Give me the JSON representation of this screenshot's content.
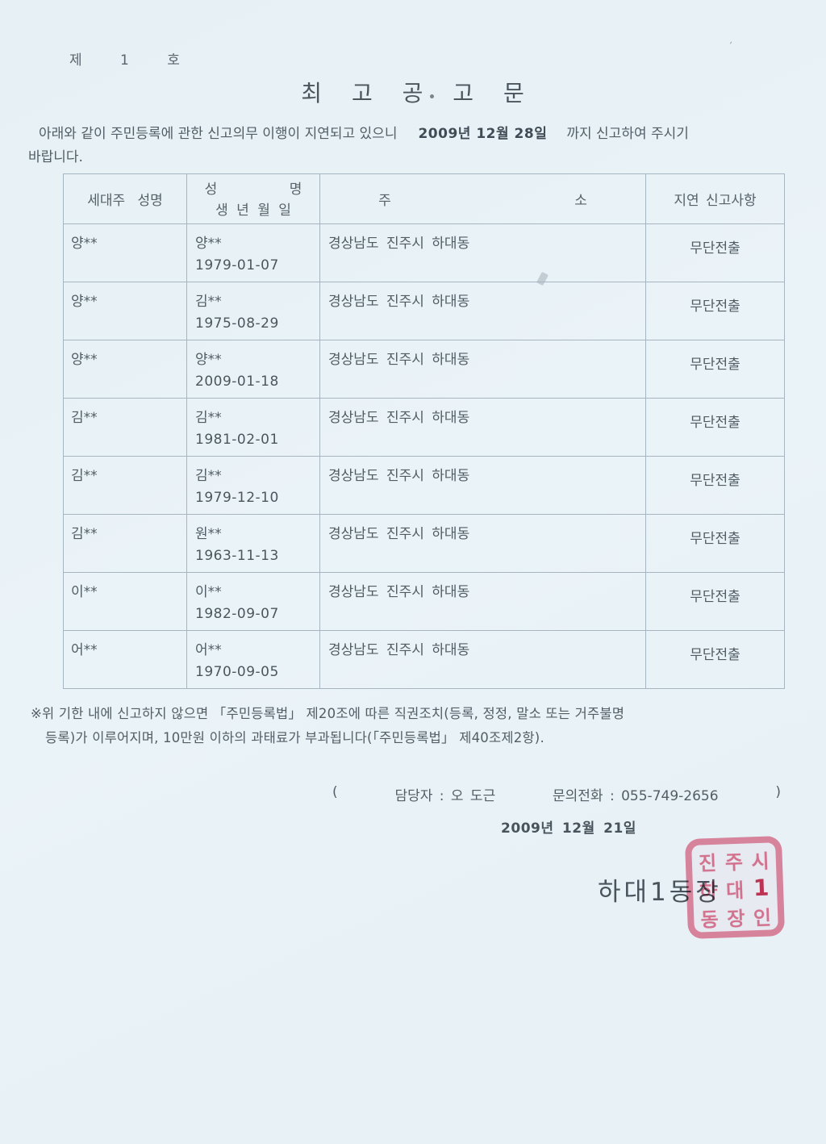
{
  "colors": {
    "paper": "#eaf3f7",
    "ink": "#4e5963",
    "table_border": "#a6b5bf",
    "stamp_red": "#e25f7d"
  },
  "page": {
    "doc_number": "제 1 호",
    "title": "최 고 공 고 문"
  },
  "intro": {
    "line1_prefix": "아래와 같이 주민등록에 관한 신고의무 이행이 지연되고 있으니",
    "deadline": "2009년 12월 28일",
    "line1_suffix": "까지 신고하여 주시기",
    "line2": "바랍니다."
  },
  "table": {
    "headers": {
      "householder": "세대주 성명",
      "name_top": "성 명",
      "dob": "생 년 월 일",
      "address": "주 소",
      "delay": "지연 신고사항"
    },
    "rows": [
      {
        "householder": "양**",
        "name": "양**",
        "dob": "1979-01-07",
        "address": "경상남도 진주시 하대동",
        "status": "무단전출"
      },
      {
        "householder": "양**",
        "name": "김**",
        "dob": "1975-08-29",
        "address": "경상남도 진주시 하대동",
        "status": "무단전출"
      },
      {
        "householder": "양**",
        "name": "양**",
        "dob": "2009-01-18",
        "address": "경상남도 진주시 하대동",
        "status": "무단전출"
      },
      {
        "householder": "김**",
        "name": "김**",
        "dob": "1981-02-01",
        "address": "경상남도 진주시 하대동",
        "status": "무단전출"
      },
      {
        "householder": "김**",
        "name": "김**",
        "dob": "1979-12-10",
        "address": "경상남도 진주시 하대동",
        "status": "무단전출"
      },
      {
        "householder": "김**",
        "name": "원**",
        "dob": "1963-11-13",
        "address": "경상남도 진주시 하대동",
        "status": "무단전출"
      },
      {
        "householder": "이**",
        "name": "이**",
        "dob": "1982-09-07",
        "address": "경상남도 진주시 하대동",
        "status": "무단전출"
      },
      {
        "householder": "어**",
        "name": "어**",
        "dob": "1970-09-05",
        "address": "경상남도 진주시 하대동",
        "status": "무단전출"
      }
    ]
  },
  "footnote": {
    "line1": "※위 기한 내에 신고하지 않으면 「주민등록법」 제20조에 따른 직권조치(등록, 정정, 말소 또는 거주불명",
    "line2": "등록)가 이루어지며, 10만원 이하의 과태료가 부과됩니다(「주민등록법」 제40조제2항)."
  },
  "contact": {
    "open_paren": "(",
    "manager": "담당자 : 오 도근",
    "phone": "문의전화 : 055-749-2656",
    "close_paren": ")"
  },
  "issue_date": "2009년 12월 21일",
  "signer": "하대1동장",
  "stamp": {
    "rows": [
      "진주시",
      "하대1",
      "동장인"
    ]
  }
}
